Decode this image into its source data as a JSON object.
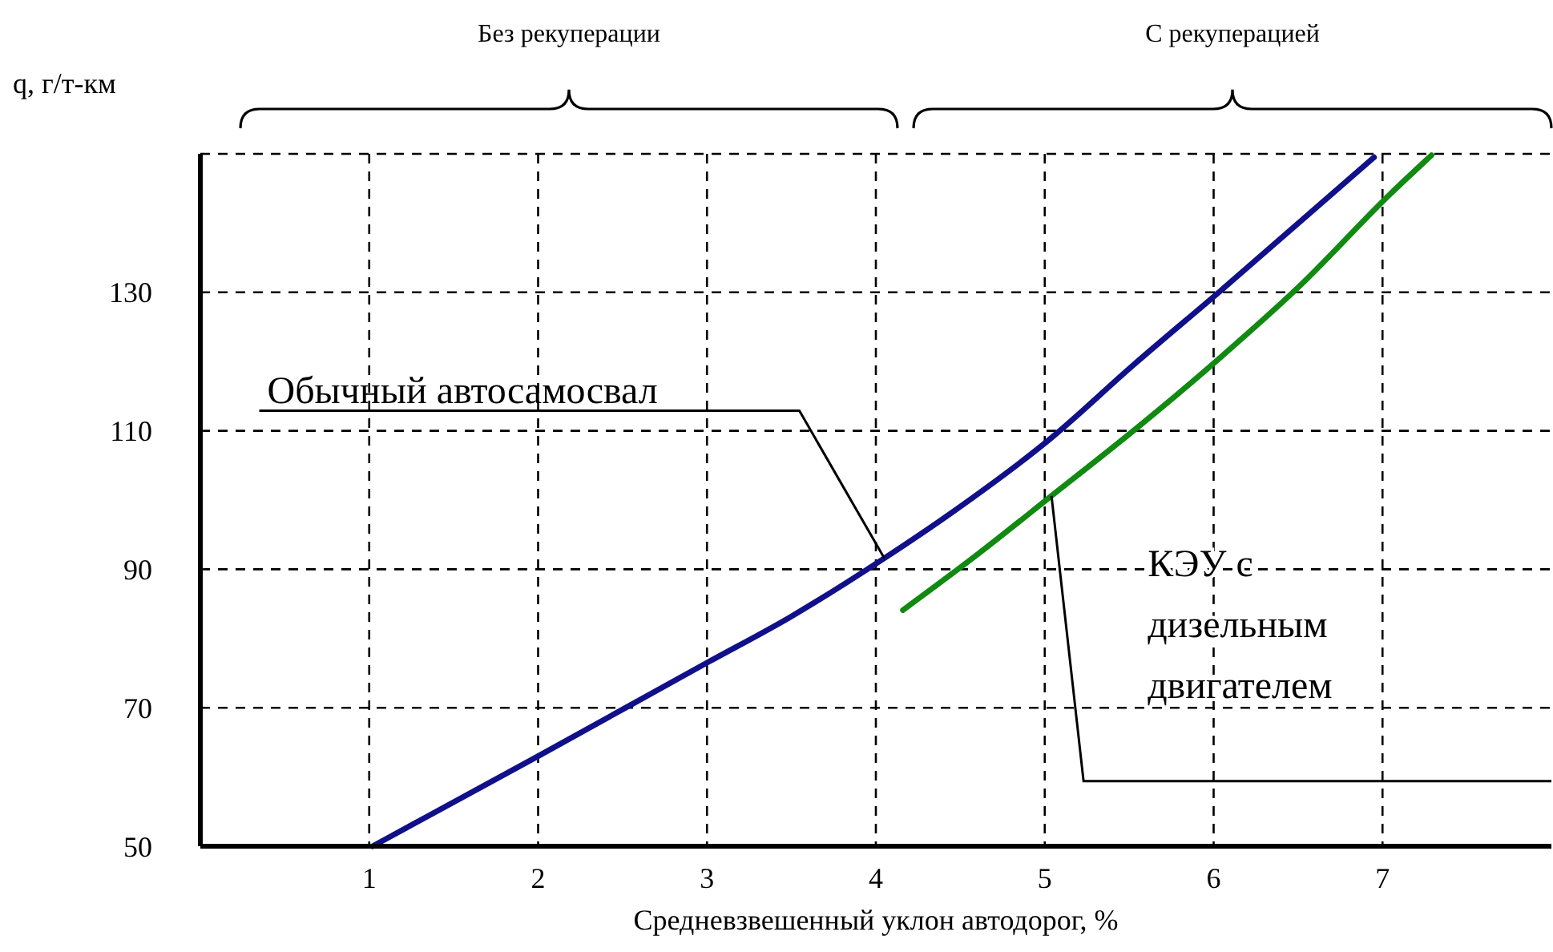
{
  "chart_data": {
    "type": "line",
    "xlabel": "Средневзвешенный уклон автодорог, %",
    "ylabel": "q, г/т-км",
    "xlim": [
      0,
      8
    ],
    "xticks": [
      1,
      2,
      3,
      4,
      5,
      6,
      7
    ],
    "ylim": [
      50,
      150
    ],
    "yticks": [
      50,
      70,
      90,
      110,
      130,
      {
        "value": 150,
        "label": null
      }
    ],
    "grid": true,
    "line_style": "solid",
    "marker": "none",
    "series": [
      {
        "color": "#10108a",
        "x": [
          1.02,
          2,
          3,
          3.5,
          4.05,
          4.45,
          5.04,
          5.52,
          6.04,
          6.95
        ],
        "values": [
          50,
          63,
          76.5,
          83.2,
          91.6,
          98.2,
          109,
          119.4,
          130.2,
          149.5
        ]
      },
      {
        "color": "#108a10",
        "x": [
          4.16,
          4.61,
          5.04,
          5.56,
          6.04,
          6.5,
          7.05,
          7.29
        ],
        "values": [
          84.1,
          92.3,
          100.6,
          110.7,
          120.6,
          130.7,
          144.3,
          149.8
        ]
      }
    ],
    "annotations": [
      {
        "text": "Обычный автосамосвал",
        "x": 4.05,
        "y": 91.6
      },
      {
        "text": "КЭУ с дизельным двигателем",
        "x": 5.04,
        "y": 100.6
      },
      "Без рекуперации",
      "С рекуперацией"
    ]
  }
}
